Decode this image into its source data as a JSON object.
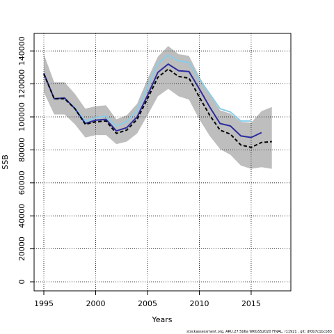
{
  "chart_data": {
    "type": "line",
    "xlabel": "Years",
    "ylabel": "SSB",
    "footnote": "stockassessment.org, ARU.27.5b6a WKGSS2020 FINAL, r11921 , git: df0b7c1bcb83",
    "x": [
      1995,
      1996,
      1997,
      1998,
      1999,
      2000,
      2001,
      2002,
      2003,
      2004,
      2005,
      2006,
      2007,
      2008,
      2009,
      2010,
      2011,
      2012,
      2013,
      2014,
      2015,
      2016,
      2017
    ],
    "band": {
      "color": "#bebebe",
      "upper": [
        138000,
        121000,
        121000,
        114000,
        105000,
        106500,
        107000,
        98500,
        101000,
        108000,
        123000,
        136500,
        143000,
        138000,
        137000,
        124500,
        113500,
        104000,
        102000,
        97000,
        96500,
        103500,
        106000
      ],
      "lower": [
        115000,
        101500,
        101500,
        95500,
        87500,
        89000,
        89000,
        83500,
        85000,
        90000,
        101000,
        112500,
        117000,
        112500,
        110500,
        98500,
        88500,
        80500,
        77000,
        70500,
        68500,
        69500,
        68500
      ]
    },
    "series": [
      {
        "color": "#87ceeb",
        "dash": false,
        "values": [
          126500,
          111000,
          111000,
          105500,
          97500,
          99500,
          100500,
          94500,
          97000,
          104000,
          118000,
          132000,
          137500,
          134000,
          133000,
          123000,
          114000,
          105000,
          103000,
          97500,
          97500,
          null,
          null
        ]
      },
      {
        "color": "#2b2b9e",
        "dash": false,
        "values": [
          126500,
          111000,
          111500,
          105000,
          96000,
          98000,
          98500,
          91500,
          93500,
          100000,
          113000,
          127000,
          132000,
          128000,
          127500,
          117000,
          106000,
          96000,
          94500,
          88500,
          87500,
          90500,
          null
        ]
      },
      {
        "color": "#000000",
        "dash": true,
        "values": [
          126000,
          111000,
          111000,
          105000,
          95500,
          97000,
          97500,
          90000,
          92000,
          98500,
          111000,
          124000,
          129000,
          124500,
          123500,
          112000,
          101000,
          92000,
          89500,
          83000,
          81500,
          84500,
          85000
        ]
      }
    ],
    "xlim": [
      1994.06,
      2018.83
    ],
    "ylim": [
      -5485,
      150630
    ],
    "xticks": [
      1995,
      2000,
      2005,
      2010,
      2015
    ],
    "yticks": [
      0,
      20000,
      40000,
      60000,
      80000,
      100000,
      120000,
      140000
    ],
    "grid": true
  }
}
